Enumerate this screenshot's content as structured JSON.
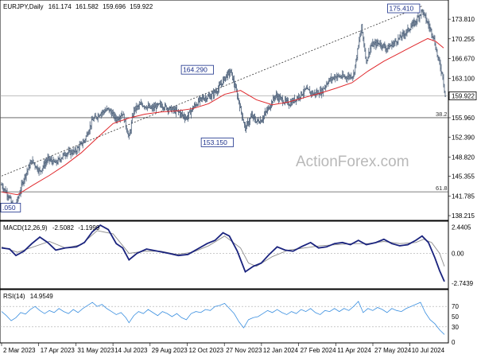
{
  "chart_data": [
    {
      "type": "ohlc",
      "title": "EURJPY,Daily",
      "ohlc_readout": [
        "161.174",
        "161.582",
        "159.696",
        "159.922"
      ],
      "last_price": 159.922,
      "ylim": [
        137.5,
        177.0
      ],
      "yticks": [
        "173.810",
        "170.255",
        "166.670",
        "163.100",
        "159.922",
        "155.960",
        "152.390",
        "148.820",
        "145.355",
        "141.785",
        "138.215"
      ],
      "xticks": [
        "2 Mar 2023",
        "17 Apr 2023",
        "31 May 2023",
        "14 Jul 2023",
        "29 Aug 2023",
        "12 Oct 2023",
        "27 Nov 2023",
        "12 Jan 2024",
        "27 Feb 2024",
        "11 Apr 2024",
        "27 May 2024",
        "10 Jul 2024"
      ],
      "price_points": [
        [
          0,
          143.8
        ],
        [
          10,
          141.5
        ],
        [
          14,
          139.6
        ],
        [
          20,
          141.0
        ],
        [
          28,
          145.0
        ],
        [
          38,
          148.2
        ],
        [
          48,
          146.2
        ],
        [
          58,
          148.5
        ],
        [
          68,
          147.7
        ],
        [
          80,
          149.5
        ],
        [
          92,
          149.8
        ],
        [
          104,
          151.8
        ],
        [
          114,
          155.5
        ],
        [
          124,
          156.8
        ],
        [
          134,
          157.5
        ],
        [
          144,
          155.7
        ],
        [
          152,
          156.8
        ],
        [
          160,
          152.3
        ],
        [
          166,
          157.4
        ],
        [
          176,
          158.4
        ],
        [
          188,
          157.6
        ],
        [
          200,
          158.3
        ],
        [
          210,
          157.6
        ],
        [
          222,
          157.0
        ],
        [
          232,
          155.9
        ],
        [
          242,
          158.1
        ],
        [
          252,
          159.5
        ],
        [
          262,
          159.8
        ],
        [
          272,
          161.2
        ],
        [
          282,
          163.6
        ],
        [
          288,
          164.3
        ],
        [
          296,
          160.0
        ],
        [
          306,
          154.0
        ],
        [
          314,
          156.3
        ],
        [
          320,
          155.3
        ],
        [
          326,
          155.5
        ],
        [
          334,
          157.4
        ],
        [
          344,
          160.0
        ],
        [
          354,
          159.0
        ],
        [
          362,
          158.5
        ],
        [
          372,
          159.7
        ],
        [
          382,
          161.0
        ],
        [
          392,
          160.3
        ],
        [
          402,
          160.7
        ],
        [
          410,
          162.6
        ],
        [
          420,
          163.5
        ],
        [
          432,
          163.3
        ],
        [
          442,
          163.7
        ],
        [
          452,
          172.4
        ],
        [
          458,
          166.2
        ],
        [
          464,
          169.0
        ],
        [
          474,
          169.5
        ],
        [
          484,
          168.5
        ],
        [
          496,
          169.9
        ],
        [
          508,
          171.5
        ],
        [
          520,
          173.4
        ],
        [
          528,
          175.4
        ],
        [
          534,
          173.4
        ],
        [
          542,
          170.8
        ],
        [
          548,
          166.7
        ],
        [
          554,
          163.5
        ],
        [
          557,
          159.9
        ]
      ],
      "ma_points": [
        [
          0,
          142.5
        ],
        [
          20,
          142.0
        ],
        [
          40,
          143.8
        ],
        [
          60,
          145.5
        ],
        [
          80,
          147.4
        ],
        [
          100,
          149.6
        ],
        [
          120,
          152.3
        ],
        [
          140,
          154.9
        ],
        [
          160,
          155.9
        ],
        [
          180,
          156.6
        ],
        [
          200,
          157.0
        ],
        [
          220,
          157.2
        ],
        [
          240,
          157.6
        ],
        [
          260,
          158.5
        ],
        [
          280,
          160.2
        ],
        [
          300,
          160.9
        ],
        [
          320,
          159.2
        ],
        [
          340,
          158.3
        ],
        [
          360,
          158.8
        ],
        [
          380,
          159.6
        ],
        [
          400,
          160.4
        ],
        [
          420,
          161.3
        ],
        [
          440,
          162.3
        ],
        [
          460,
          164.4
        ],
        [
          480,
          166.2
        ],
        [
          500,
          167.7
        ],
        [
          520,
          169.2
        ],
        [
          535,
          170.3
        ],
        [
          545,
          169.8
        ],
        [
          555,
          168.6
        ]
      ],
      "trendline_points": [
        [
          0,
          145.4
        ],
        [
          528,
          176.2
        ]
      ],
      "fib_levels": [
        {
          "label": "38.2",
          "value": 155.96
        },
        {
          "label": "61.8",
          "value": 142.53
        }
      ],
      "annotations": [
        {
          "label": "175.410",
          "x": 527,
          "y": 175.41
        },
        {
          "label": "164.290",
          "x": 272,
          "y": 164.29
        },
        {
          "label": "153.150",
          "x": 297,
          "y": 153.15
        },
        {
          "label": ".050",
          "x": 14,
          "y": 139.6
        }
      ]
    },
    {
      "type": "line",
      "title": "MACD(12,26,9)",
      "values_readout": [
        "-2.5082",
        "-1.1999"
      ],
      "ylim": [
        -3.2,
        2.9
      ],
      "yticks": [
        "2.4405",
        "0.00",
        "-2.7439"
      ],
      "macd_points": [
        [
          0,
          0.5
        ],
        [
          10,
          0.4
        ],
        [
          18,
          -0.2
        ],
        [
          28,
          0.2
        ],
        [
          38,
          0.9
        ],
        [
          48,
          1.5
        ],
        [
          58,
          1.0
        ],
        [
          68,
          0.3
        ],
        [
          80,
          0.5
        ],
        [
          94,
          0.6
        ],
        [
          104,
          1.0
        ],
        [
          114,
          2.0
        ],
        [
          124,
          2.6
        ],
        [
          134,
          2.2
        ],
        [
          144,
          0.9
        ],
        [
          152,
          0.5
        ],
        [
          160,
          -0.6
        ],
        [
          170,
          0.0
        ],
        [
          182,
          0.4
        ],
        [
          196,
          0.2
        ],
        [
          210,
          0.0
        ],
        [
          222,
          -0.2
        ],
        [
          234,
          -0.1
        ],
        [
          246,
          0.4
        ],
        [
          258,
          0.9
        ],
        [
          268,
          1.2
        ],
        [
          278,
          1.9
        ],
        [
          286,
          1.6
        ],
        [
          296,
          0.2
        ],
        [
          306,
          -1.7
        ],
        [
          316,
          -1.2
        ],
        [
          326,
          -0.9
        ],
        [
          336,
          -0.1
        ],
        [
          346,
          0.6
        ],
        [
          356,
          0.3
        ],
        [
          366,
          0.2
        ],
        [
          376,
          0.6
        ],
        [
          388,
          1.0
        ],
        [
          398,
          0.5
        ],
        [
          408,
          0.6
        ],
        [
          418,
          0.9
        ],
        [
          428,
          1.0
        ],
        [
          438,
          0.8
        ],
        [
          448,
          1.2
        ],
        [
          458,
          0.8
        ],
        [
          470,
          1.0
        ],
        [
          480,
          1.3
        ],
        [
          490,
          0.9
        ],
        [
          500,
          0.7
        ],
        [
          510,
          0.8
        ],
        [
          520,
          1.2
        ],
        [
          528,
          1.6
        ],
        [
          536,
          1.0
        ],
        [
          544,
          -0.4
        ],
        [
          550,
          -1.6
        ],
        [
          556,
          -2.6
        ]
      ],
      "signal_points": [
        [
          0,
          0.6
        ],
        [
          20,
          0.1
        ],
        [
          40,
          0.6
        ],
        [
          60,
          1.1
        ],
        [
          80,
          0.5
        ],
        [
          100,
          0.8
        ],
        [
          120,
          2.1
        ],
        [
          140,
          1.8
        ],
        [
          160,
          0.0
        ],
        [
          180,
          0.2
        ],
        [
          200,
          0.2
        ],
        [
          220,
          -0.1
        ],
        [
          240,
          0.1
        ],
        [
          260,
          0.7
        ],
        [
          280,
          1.6
        ],
        [
          300,
          0.5
        ],
        [
          310,
          -0.9
        ],
        [
          320,
          -1.2
        ],
        [
          340,
          -0.3
        ],
        [
          360,
          0.3
        ],
        [
          380,
          0.5
        ],
        [
          400,
          0.7
        ],
        [
          420,
          0.8
        ],
        [
          440,
          0.9
        ],
        [
          460,
          0.9
        ],
        [
          480,
          1.1
        ],
        [
          500,
          0.9
        ],
        [
          520,
          1.0
        ],
        [
          530,
          1.3
        ],
        [
          540,
          1.0
        ],
        [
          550,
          0.0
        ],
        [
          556,
          -1.2
        ]
      ]
    },
    {
      "type": "line",
      "title": "RSI(14)",
      "value_readout": "14.9549",
      "ylim": [
        0,
        100
      ],
      "yticks": [
        "70",
        "50",
        "30",
        "0"
      ],
      "rsi_points": [
        [
          0,
          60
        ],
        [
          6,
          52
        ],
        [
          12,
          42
        ],
        [
          18,
          48
        ],
        [
          24,
          58
        ],
        [
          30,
          55
        ],
        [
          36,
          64
        ],
        [
          42,
          70
        ],
        [
          48,
          62
        ],
        [
          54,
          56
        ],
        [
          60,
          62
        ],
        [
          66,
          58
        ],
        [
          72,
          66
        ],
        [
          78,
          60
        ],
        [
          84,
          56
        ],
        [
          90,
          64
        ],
        [
          96,
          58
        ],
        [
          102,
          66
        ],
        [
          108,
          72
        ],
        [
          114,
          78
        ],
        [
          120,
          70
        ],
        [
          126,
          74
        ],
        [
          132,
          66
        ],
        [
          138,
          60
        ],
        [
          144,
          54
        ],
        [
          150,
          58
        ],
        [
          156,
          48
        ],
        [
          160,
          38
        ],
        [
          166,
          52
        ],
        [
          172,
          60
        ],
        [
          178,
          56
        ],
        [
          184,
          64
        ],
        [
          190,
          58
        ],
        [
          196,
          52
        ],
        [
          202,
          60
        ],
        [
          208,
          56
        ],
        [
          214,
          50
        ],
        [
          220,
          56
        ],
        [
          226,
          48
        ],
        [
          232,
          44
        ],
        [
          238,
          56
        ],
        [
          244,
          60
        ],
        [
          250,
          58
        ],
        [
          256,
          64
        ],
        [
          262,
          62
        ],
        [
          268,
          70
        ],
        [
          274,
          72
        ],
        [
          280,
          76
        ],
        [
          286,
          66
        ],
        [
          292,
          56
        ],
        [
          298,
          40
        ],
        [
          304,
          28
        ],
        [
          310,
          44
        ],
        [
          316,
          48
        ],
        [
          322,
          50
        ],
        [
          328,
          56
        ],
        [
          334,
          62
        ],
        [
          340,
          58
        ],
        [
          346,
          64
        ],
        [
          352,
          58
        ],
        [
          358,
          54
        ],
        [
          364,
          60
        ],
        [
          370,
          56
        ],
        [
          376,
          64
        ],
        [
          382,
          60
        ],
        [
          388,
          66
        ],
        [
          394,
          58
        ],
        [
          400,
          54
        ],
        [
          406,
          62
        ],
        [
          412,
          60
        ],
        [
          418,
          66
        ],
        [
          424,
          60
        ],
        [
          430,
          66
        ],
        [
          436,
          62
        ],
        [
          442,
          70
        ],
        [
          448,
          80
        ],
        [
          454,
          58
        ],
        [
          460,
          66
        ],
        [
          466,
          62
        ],
        [
          472,
          68
        ],
        [
          478,
          64
        ],
        [
          484,
          58
        ],
        [
          490,
          66
        ],
        [
          496,
          62
        ],
        [
          502,
          60
        ],
        [
          508,
          66
        ],
        [
          514,
          70
        ],
        [
          520,
          74
        ],
        [
          526,
          78
        ],
        [
          532,
          58
        ],
        [
          538,
          44
        ],
        [
          544,
          36
        ],
        [
          550,
          24
        ],
        [
          556,
          15
        ]
      ]
    }
  ],
  "watermark": "ActionForex.com",
  "colors": {
    "price": "#4a5e78",
    "ma": "#e0282c",
    "macd": "#1a237e",
    "signal": "#8c8c8c",
    "rsi": "#3a8fe0",
    "annotation": "#1a2f8a"
  }
}
